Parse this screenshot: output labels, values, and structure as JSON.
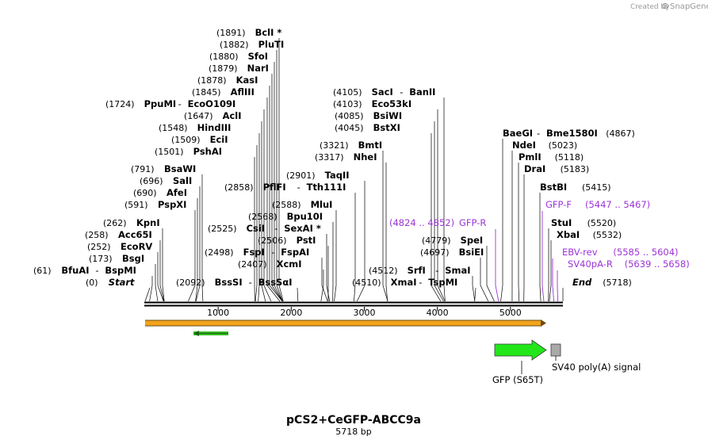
{
  "credit": {
    "prefix": "Created by",
    "brand": "SnapGene"
  },
  "plasmid": {
    "name": "pCS2+CeGFP-ABCC9a",
    "length_label": "5718 bp",
    "length": 5718
  },
  "ruler": {
    "ticks": [
      1000,
      2000,
      3000,
      4000,
      5000
    ]
  },
  "sites": [
    {
      "pos": "(1891)",
      "loc": 1891,
      "names": [
        "BclI *"
      ]
    },
    {
      "pos": "(1882)",
      "loc": 1882,
      "names": [
        "PluTI"
      ]
    },
    {
      "pos": "(1880)",
      "loc": 1880,
      "names": [
        "SfoI"
      ]
    },
    {
      "pos": "(1879)",
      "loc": 1879,
      "names": [
        "NarI"
      ]
    },
    {
      "pos": "(1878)",
      "loc": 1878,
      "names": [
        "KasI"
      ]
    },
    {
      "pos": "(1845)",
      "loc": 1845,
      "names": [
        "AflIII"
      ]
    },
    {
      "pos": "(1724)",
      "loc": 1724,
      "names": [
        "PpuMI",
        "EcoO109I"
      ]
    },
    {
      "pos": "(1647)",
      "loc": 1647,
      "names": [
        "AclI"
      ]
    },
    {
      "pos": "(1548)",
      "loc": 1548,
      "names": [
        "HindIII"
      ]
    },
    {
      "pos": "(1509)",
      "loc": 1509,
      "names": [
        "EciI"
      ]
    },
    {
      "pos": "(1501)",
      "loc": 1501,
      "names": [
        "PshAI"
      ]
    },
    {
      "pos": "(791)",
      "loc": 791,
      "names": [
        "BsaWI"
      ]
    },
    {
      "pos": "(696)",
      "loc": 696,
      "names": [
        "SalI"
      ]
    },
    {
      "pos": "(690)",
      "loc": 690,
      "names": [
        "AfeI"
      ]
    },
    {
      "pos": "(591)",
      "loc": 591,
      "names": [
        "PspXI"
      ]
    },
    {
      "pos": "(262)",
      "loc": 262,
      "names": [
        "KpnI"
      ]
    },
    {
      "pos": "(258)",
      "loc": 258,
      "names": [
        "Acc65I"
      ]
    },
    {
      "pos": "(252)",
      "loc": 252,
      "names": [
        "EcoRV"
      ]
    },
    {
      "pos": "(173)",
      "loc": 173,
      "names": [
        "BsgI"
      ]
    },
    {
      "pos": "(61)",
      "loc": 61,
      "names": [
        "BfuAI",
        "BspMI"
      ]
    },
    {
      "pos": "(0)",
      "loc": 0,
      "names": [
        "Start"
      ],
      "italic": true
    },
    {
      "pos": "(2858)",
      "loc": 2858,
      "names": [
        "PflFI",
        "Tth111I"
      ]
    },
    {
      "pos": "(2901)",
      "loc": 2901,
      "names": [
        "TaqII"
      ]
    },
    {
      "pos": "(2588)",
      "loc": 2588,
      "names": [
        "MluI"
      ]
    },
    {
      "pos": "(2568)",
      "loc": 2568,
      "names": [
        "Bpu10I"
      ]
    },
    {
      "pos": "(2525)",
      "loc": 2525,
      "names": [
        "CsiI",
        "SexAI *"
      ]
    },
    {
      "pos": "(2506)",
      "loc": 2506,
      "names": [
        "PstI"
      ]
    },
    {
      "pos": "(2498)",
      "loc": 2498,
      "names": [
        "FspI",
        "FspAI"
      ]
    },
    {
      "pos": "(2407)",
      "loc": 2407,
      "names": [
        "XcmI"
      ]
    },
    {
      "pos": "(2092)",
      "loc": 2092,
      "names": [
        "BssSI",
        "BssSαI"
      ]
    },
    {
      "pos": "(4105)",
      "loc": 4105,
      "names": [
        "SacI",
        "BanII"
      ]
    },
    {
      "pos": "(4103)",
      "loc": 4103,
      "names": [
        "Eco53kI"
      ]
    },
    {
      "pos": "(4085)",
      "loc": 4085,
      "names": [
        "BsiWI"
      ]
    },
    {
      "pos": "(4045)",
      "loc": 4045,
      "names": [
        "BstXI"
      ]
    },
    {
      "pos": "(3321)",
      "loc": 3321,
      "names": [
        "BmtI"
      ]
    },
    {
      "pos": "(3317)",
      "loc": 3317,
      "names": [
        "NheI"
      ]
    },
    {
      "pos": "(4779)",
      "loc": 4779,
      "names": [
        "SpeI"
      ]
    },
    {
      "pos": "(4697)",
      "loc": 4697,
      "names": [
        "BsiEI"
      ]
    },
    {
      "pos": "(4512)",
      "loc": 4512,
      "names": [
        "SrfI",
        "SmaI"
      ]
    },
    {
      "pos": "(4510)",
      "loc": 4510,
      "names": [
        "XmaI",
        "TspMI"
      ]
    },
    {
      "pos": "(4867)",
      "loc": 4867,
      "names": [
        "BaeGI",
        "Bme1580I"
      ]
    },
    {
      "pos": "(5023)",
      "loc": 5023,
      "names": [
        "NdeI"
      ]
    },
    {
      "pos": "(5118)",
      "loc": 5118,
      "names": [
        "PmlI"
      ]
    },
    {
      "pos": "(5183)",
      "loc": 5183,
      "names": [
        "DraI"
      ]
    },
    {
      "pos": "(5415)",
      "loc": 5415,
      "names": [
        "BstBI"
      ]
    },
    {
      "pos": "(5520)",
      "loc": 5520,
      "names": [
        "StuI"
      ]
    },
    {
      "pos": "(5532)",
      "loc": 5532,
      "names": [
        "XbaI"
      ]
    },
    {
      "pos": "(5718)",
      "loc": 5718,
      "names": [
        "End"
      ],
      "italic": true
    }
  ],
  "primers": [
    {
      "name": "GFP-R",
      "range": "(4824 .. 4852)",
      "loc": 4838
    },
    {
      "name": "GFP-F",
      "range": "(5447 .. 5467)",
      "loc": 5457
    },
    {
      "name": "EBV-rev",
      "range": "(5585 .. 5604)",
      "loc": 5594
    },
    {
      "name": "SV40pA-R",
      "range": "(5639 .. 5658)",
      "loc": 5648
    }
  ],
  "features": [
    {
      "name": "GFP (S65T)",
      "color": "#22e61a"
    },
    {
      "name": "SV40 poly(A) signal",
      "color": "#aaaaaa"
    }
  ],
  "colors": {
    "orf_bar": "#f2a31b",
    "orf_outline": "#6b4d12",
    "small_orf": "#37c324"
  }
}
